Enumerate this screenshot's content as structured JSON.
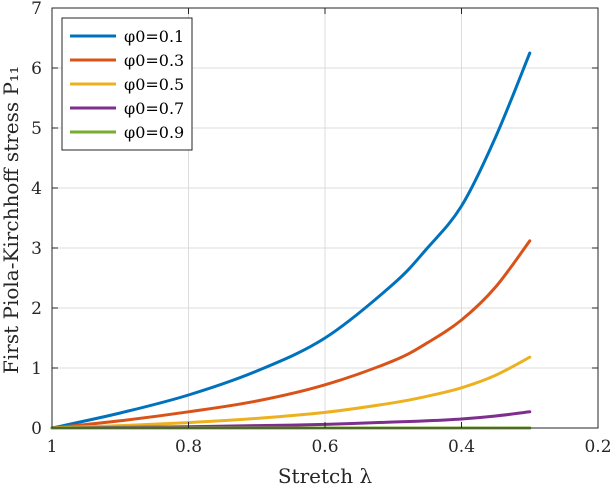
{
  "chart_data": {
    "type": "line",
    "xlabel": "Stretch λ",
    "ylabel": "First Piola-Kirchhoff stress P₁₁",
    "xlim": [
      0.2,
      1
    ],
    "x_reversed": true,
    "ylim": [
      0,
      7
    ],
    "grid": true,
    "legend_placement": "top-left",
    "xticks": [
      "1",
      "0.8",
      "0.6",
      "0.4",
      "0.2"
    ],
    "yticks": [
      "0",
      "1",
      "2",
      "3",
      "4",
      "5",
      "6",
      "7"
    ],
    "x": [
      1.0,
      0.9,
      0.8,
      0.7,
      0.6,
      0.5,
      0.45,
      0.4,
      0.35,
      0.3
    ],
    "series": [
      {
        "name": "φ0=0.1",
        "color": "#0072BD",
        "values": [
          0.0,
          0.25,
          0.55,
          0.95,
          1.5,
          2.4,
          3.0,
          3.7,
          4.85,
          6.25
        ]
      },
      {
        "name": "φ0=0.3",
        "color": "#D95319",
        "values": [
          0.0,
          0.12,
          0.27,
          0.45,
          0.72,
          1.12,
          1.42,
          1.8,
          2.35,
          3.12
        ]
      },
      {
        "name": "φ0=0.5",
        "color": "#EDB120",
        "values": [
          0.0,
          0.04,
          0.09,
          0.16,
          0.26,
          0.42,
          0.53,
          0.67,
          0.88,
          1.18
        ]
      },
      {
        "name": "φ0=0.7",
        "color": "#7E2F8E",
        "values": [
          0.0,
          0.01,
          0.02,
          0.04,
          0.06,
          0.1,
          0.12,
          0.15,
          0.2,
          0.27
        ]
      },
      {
        "name": "φ0=0.9",
        "color": "#77AC30",
        "values": [
          0.0,
          0.0,
          0.0,
          0.0,
          0.0,
          0.0,
          0.0,
          0.0,
          0.0,
          0.0
        ]
      }
    ]
  }
}
